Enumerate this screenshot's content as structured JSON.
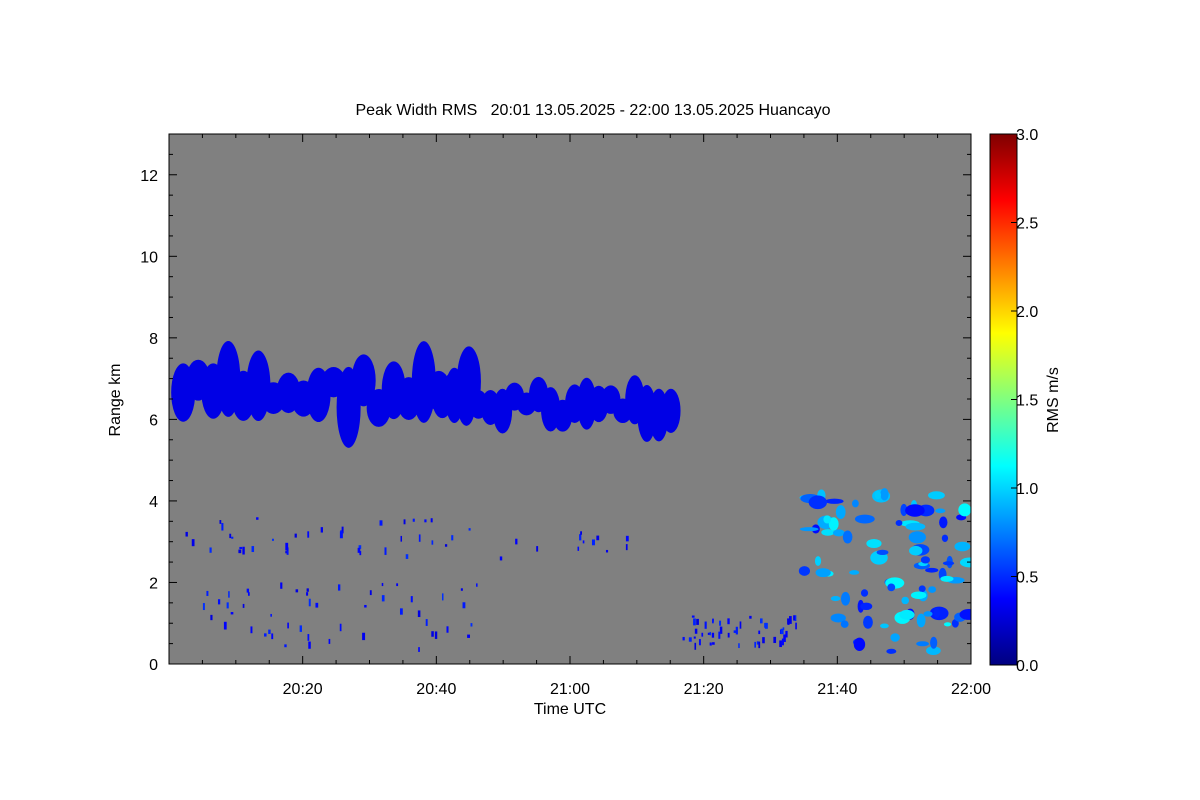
{
  "chart_data": {
    "type": "heatmap",
    "title": "Peak Width RMS   20:01 13.05.2025 - 22:00 13.05.2025 Huancayo",
    "xlabel": "Time UTC",
    "ylabel": "Range km",
    "xlim": [
      "20:01",
      "22:00"
    ],
    "ylim": [
      0,
      13
    ],
    "x_tick_labels": [
      "20:20",
      "20:40",
      "21:00",
      "21:20",
      "21:40",
      "22:00"
    ],
    "y_tick_labels": [
      "0",
      "2",
      "4",
      "6",
      "8",
      "10",
      "12"
    ],
    "colorbar": {
      "label": "RMS m/s",
      "range": [
        0.0,
        3.0
      ],
      "tick_labels": [
        "0.0",
        "0.5",
        "1.0",
        "1.5",
        "2.0",
        "2.5",
        "3.0"
      ],
      "colormap": "jet"
    },
    "background_color": "#808080",
    "features": [
      {
        "kind": "echo-layer",
        "time_start": "20:01",
        "time_end": "20:46",
        "range_km": [
          5.3,
          8.0
        ],
        "rms_m_s": 0.3
      },
      {
        "kind": "echo-layer",
        "time_start": "20:40",
        "time_end": "21:16",
        "range_km": [
          5.4,
          7.3
        ],
        "rms_m_s": 0.3
      },
      {
        "kind": "scattered-echoes",
        "time_start": "20:02",
        "time_end": "21:09",
        "range_km": [
          2.6,
          3.6
        ],
        "rms_m_s": 0.4
      },
      {
        "kind": "scattered-echoes",
        "time_start": "20:05",
        "time_end": "20:46",
        "range_km": [
          0.4,
          2.0
        ],
        "rms_m_s": 0.4
      },
      {
        "kind": "scattered-echoes",
        "time_start": "21:16",
        "time_end": "21:34",
        "range_km": [
          0.5,
          1.2
        ],
        "rms_m_s": 0.4
      },
      {
        "kind": "convective-echoes",
        "time_start": "21:35",
        "time_end": "22:00",
        "range_km": [
          0.2,
          4.2
        ],
        "rms_m_s": 0.8
      }
    ]
  }
}
